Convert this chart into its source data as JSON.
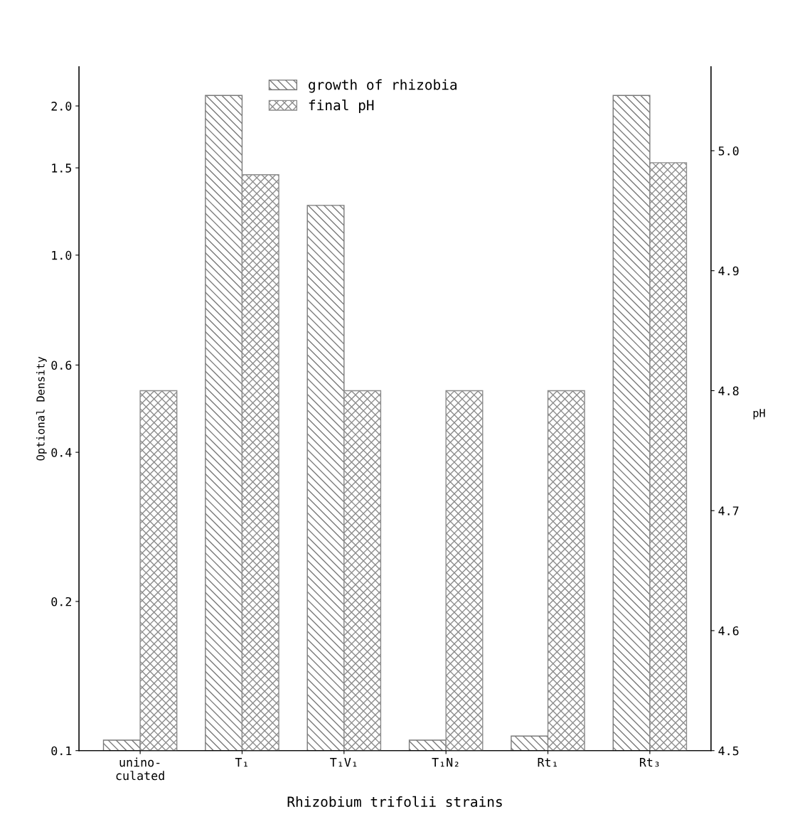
{
  "chart_data": {
    "type": "bar",
    "xlabel": "Rhizobium trifolii strains",
    "ylabel": "Optional Density",
    "y2label": "pH",
    "categories": [
      "unino-\nculated",
      "T₁",
      "T₁V₁",
      "T₁N₂",
      "Rt₁",
      "Rt₃"
    ],
    "series": [
      {
        "name": "growth of rhizobia",
        "color": "#7a7a7a",
        "values": [
          0.105,
          2.1,
          1.26,
          0.105,
          0.107,
          2.1
        ]
      },
      {
        "name": "final pH",
        "color": "#8c8c8c",
        "axis": "y2",
        "values": [
          4.8,
          4.98,
          4.8,
          4.8,
          4.8,
          4.99
        ]
      }
    ],
    "log": "y",
    "ylim": [
      0.1,
      2.4
    ],
    "yticks": [
      0.1,
      0.2,
      0.4,
      0.6,
      {
        "value": 1,
        "label": "1.0"
      },
      1.5,
      {
        "value": 2,
        "label": "2.0"
      }
    ],
    "y2lim": [
      4.5,
      5.07
    ],
    "y2ticks": [
      4.5,
      4.6,
      4.7,
      4.8,
      4.9,
      {
        "value": 5,
        "label": "5.0"
      }
    ],
    "grid": false,
    "legend": "top"
  }
}
